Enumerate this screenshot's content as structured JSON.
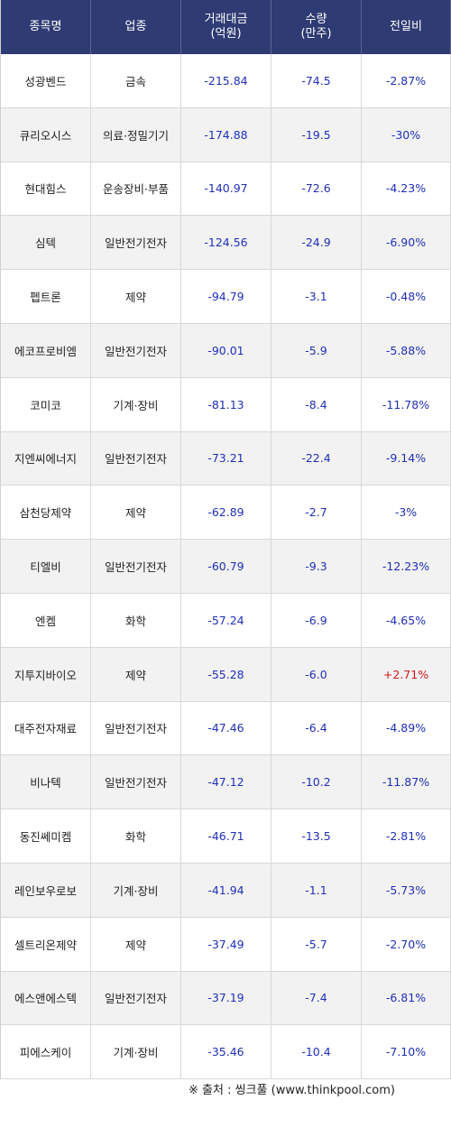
{
  "header": {
    "name": "종목명",
    "sector": "업종",
    "amount": "거래대금\n(억원)",
    "volume": "수량\n(만주)",
    "change": "전일비"
  },
  "rows": [
    {
      "name": "성광벤드",
      "sector": "금속",
      "amount": "-215.84",
      "volume": "-74.5",
      "change": "-2.87%"
    },
    {
      "name": "큐리오시스",
      "sector": "의료·정밀기기",
      "amount": "-174.88",
      "volume": "-19.5",
      "change": "-30%"
    },
    {
      "name": "현대힘스",
      "sector": "운송장비·부품",
      "amount": "-140.97",
      "volume": "-72.6",
      "change": "-4.23%"
    },
    {
      "name": "심텍",
      "sector": "일반전기전자",
      "amount": "-124.56",
      "volume": "-24.9",
      "change": "-6.90%"
    },
    {
      "name": "펩트론",
      "sector": "제약",
      "amount": "-94.79",
      "volume": "-3.1",
      "change": "-0.48%"
    },
    {
      "name": "에코프로비엠",
      "sector": "일반전기전자",
      "amount": "-90.01",
      "volume": "-5.9",
      "change": "-5.88%"
    },
    {
      "name": "코미코",
      "sector": "기계·장비",
      "amount": "-81.13",
      "volume": "-8.4",
      "change": "-11.78%"
    },
    {
      "name": "지엔씨에너지",
      "sector": "일반전기전자",
      "amount": "-73.21",
      "volume": "-22.4",
      "change": "-9.14%"
    },
    {
      "name": "삼천당제약",
      "sector": "제약",
      "amount": "-62.89",
      "volume": "-2.7",
      "change": "-3%"
    },
    {
      "name": "티엘비",
      "sector": "일반전기전자",
      "amount": "-60.79",
      "volume": "-9.3",
      "change": "-12.23%"
    },
    {
      "name": "엔켐",
      "sector": "화학",
      "amount": "-57.24",
      "volume": "-6.9",
      "change": "-4.65%"
    },
    {
      "name": "지투지바이오",
      "sector": "제약",
      "amount": "-55.28",
      "volume": "-6.0",
      "change": "+2.71%"
    },
    {
      "name": "대주전자재료",
      "sector": "일반전기전자",
      "amount": "-47.46",
      "volume": "-6.4",
      "change": "-4.89%"
    },
    {
      "name": "비나텍",
      "sector": "일반전기전자",
      "amount": "-47.12",
      "volume": "-10.2",
      "change": "-11.87%"
    },
    {
      "name": "동진쎄미켐",
      "sector": "화학",
      "amount": "-46.71",
      "volume": "-13.5",
      "change": "-2.81%"
    },
    {
      "name": "레인보우로보",
      "sector": "기계·장비",
      "amount": "-41.94",
      "volume": "-1.1",
      "change": "-5.73%"
    },
    {
      "name": "셀트리온제약",
      "sector": "제약",
      "amount": "-37.49",
      "volume": "-5.7",
      "change": "-2.70%"
    },
    {
      "name": "에스앤에스텍",
      "sector": "일반전기전자",
      "amount": "-37.19",
      "volume": "-7.4",
      "change": "-6.81%"
    },
    {
      "name": "피에스케이",
      "sector": "기계·장비",
      "amount": "-35.46",
      "volume": "-10.4",
      "change": "-7.10%"
    }
  ],
  "source": "※ 출처 : 씽크풀 (www.thinkpool.com)",
  "colors": {
    "header_bg": "#2f3b73",
    "negative": "#1f2fb8",
    "positive": "#d01818",
    "alt_row": "#f2f2f2"
  }
}
